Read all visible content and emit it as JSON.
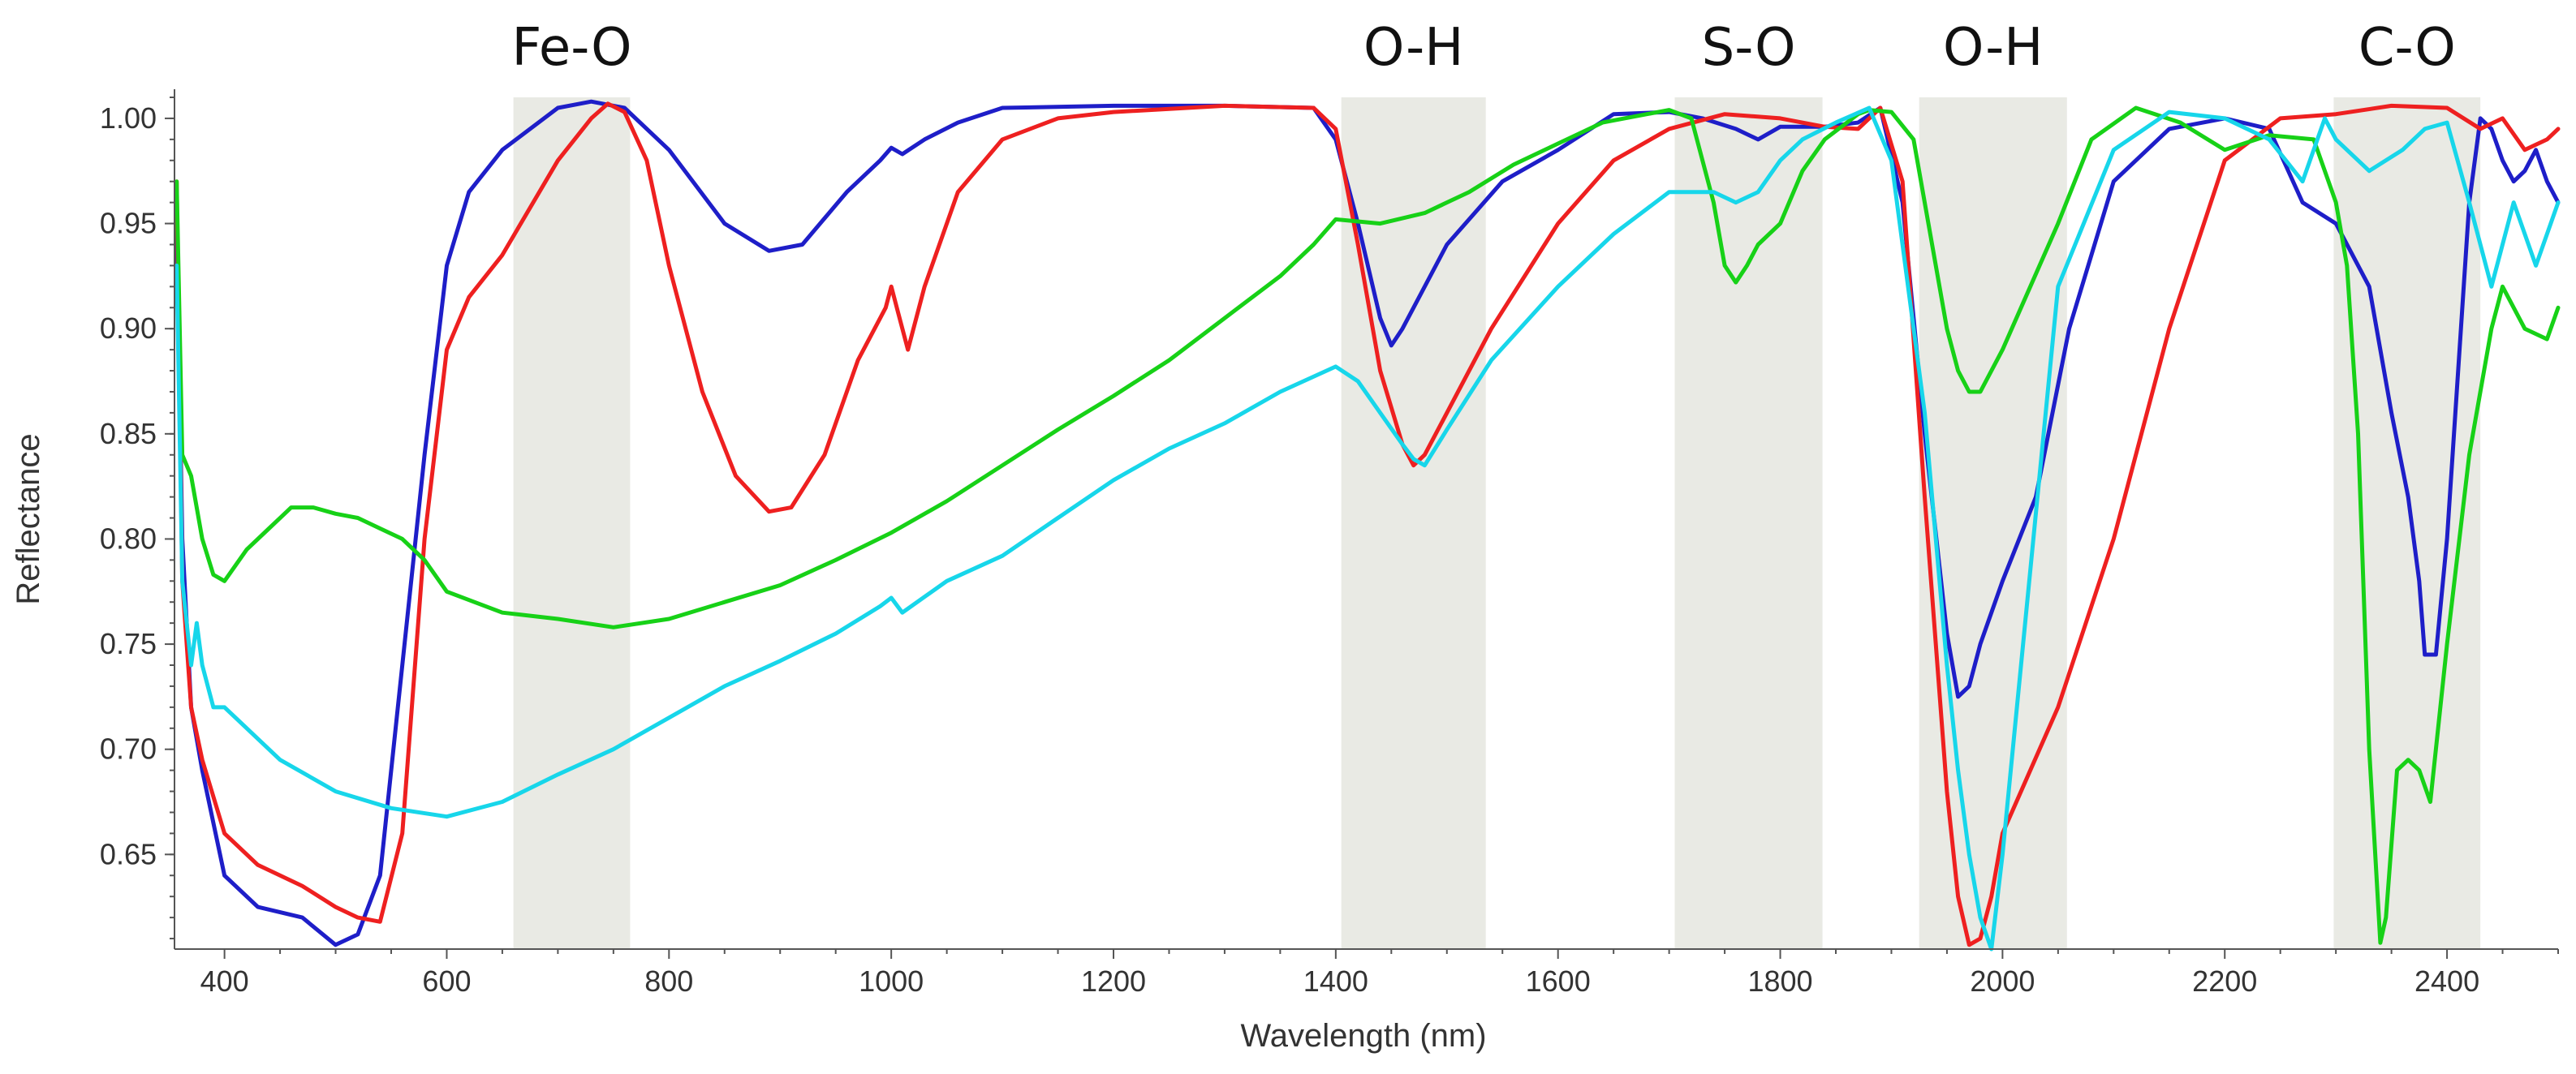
{
  "chart_data": {
    "type": "line",
    "title": "",
    "xlabel": "Wavelength (nm)",
    "ylabel": "Reflectance",
    "xlim": [
      355,
      2500
    ],
    "ylim": [
      0.605,
      1.01
    ],
    "grid": false,
    "x_ticks": [
      400,
      600,
      800,
      1000,
      1200,
      1400,
      1600,
      1800,
      2000,
      2200,
      2400
    ],
    "y_ticks": [
      0.65,
      0.7,
      0.75,
      0.8,
      0.85,
      0.9,
      0.95,
      1.0
    ],
    "y_tick_labels": [
      "0.65",
      "0.70",
      "0.75",
      "0.80",
      "0.85",
      "0.90",
      "0.95",
      "1.00"
    ],
    "bands": [
      {
        "label": "Fe-O",
        "from": 660,
        "to": 765
      },
      {
        "label": "O-H",
        "from": 1405,
        "to": 1535
      },
      {
        "label": "S-O",
        "from": 1705,
        "to": 1838
      },
      {
        "label": "O-H",
        "from": 1925,
        "to": 2058
      },
      {
        "label": "C-O",
        "from": 2298,
        "to": 2430
      }
    ],
    "series": [
      {
        "name": "blue",
        "color": "#1e1ec8",
        "x": [
          357,
          362,
          370,
          380,
          400,
          430,
          470,
          500,
          520,
          540,
          560,
          580,
          600,
          620,
          650,
          700,
          730,
          760,
          800,
          850,
          890,
          920,
          960,
          990,
          1000,
          1010,
          1030,
          1060,
          1100,
          1200,
          1300,
          1380,
          1400,
          1420,
          1440,
          1450,
          1460,
          1500,
          1550,
          1600,
          1650,
          1700,
          1730,
          1760,
          1780,
          1800,
          1840,
          1870,
          1890,
          1910,
          1930,
          1950,
          1960,
          1970,
          1980,
          2000,
          2030,
          2060,
          2100,
          2150,
          2200,
          2240,
          2270,
          2300,
          2330,
          2350,
          2365,
          2375,
          2380,
          2390,
          2400,
          2420,
          2430,
          2440,
          2450,
          2460,
          2470,
          2480,
          2490,
          2500
        ],
        "y": [
          0.95,
          0.8,
          0.72,
          0.69,
          0.64,
          0.625,
          0.62,
          0.607,
          0.612,
          0.64,
          0.74,
          0.84,
          0.93,
          0.965,
          0.985,
          1.005,
          1.008,
          1.005,
          0.985,
          0.95,
          0.937,
          0.94,
          0.965,
          0.98,
          0.986,
          0.983,
          0.99,
          0.998,
          1.005,
          1.006,
          1.006,
          1.005,
          0.99,
          0.95,
          0.905,
          0.892,
          0.9,
          0.94,
          0.97,
          0.985,
          1.002,
          1.003,
          1.0,
          0.995,
          0.99,
          0.996,
          0.996,
          0.998,
          1.005,
          0.96,
          0.85,
          0.755,
          0.725,
          0.73,
          0.75,
          0.78,
          0.82,
          0.9,
          0.97,
          0.995,
          1.0,
          0.995,
          0.96,
          0.95,
          0.92,
          0.86,
          0.82,
          0.78,
          0.745,
          0.745,
          0.8,
          0.96,
          1.0,
          0.995,
          0.98,
          0.97,
          0.975,
          0.985,
          0.97,
          0.96
        ]
      },
      {
        "name": "red",
        "color": "#ee2020",
        "x": [
          357,
          362,
          370,
          380,
          400,
          430,
          470,
          500,
          520,
          540,
          560,
          580,
          600,
          620,
          650,
          700,
          730,
          745,
          760,
          780,
          800,
          830,
          860,
          890,
          910,
          940,
          970,
          995,
          1000,
          1005,
          1015,
          1030,
          1060,
          1100,
          1150,
          1200,
          1300,
          1380,
          1400,
          1420,
          1440,
          1460,
          1470,
          1480,
          1500,
          1540,
          1600,
          1650,
          1700,
          1750,
          1800,
          1840,
          1870,
          1890,
          1910,
          1930,
          1950,
          1960,
          1970,
          1980,
          1990,
          2000,
          2050,
          2100,
          2150,
          2200,
          2250,
          2300,
          2350,
          2400,
          2430,
          2450,
          2470,
          2490,
          2500
        ],
        "y": [
          0.97,
          0.78,
          0.72,
          0.695,
          0.66,
          0.645,
          0.635,
          0.625,
          0.62,
          0.618,
          0.66,
          0.8,
          0.89,
          0.915,
          0.935,
          0.98,
          1.0,
          1.007,
          1.003,
          0.98,
          0.93,
          0.87,
          0.83,
          0.813,
          0.815,
          0.84,
          0.885,
          0.91,
          0.92,
          0.91,
          0.89,
          0.92,
          0.965,
          0.99,
          1.0,
          1.003,
          1.006,
          1.005,
          0.995,
          0.94,
          0.88,
          0.845,
          0.835,
          0.84,
          0.86,
          0.9,
          0.95,
          0.98,
          0.995,
          1.002,
          1.0,
          0.996,
          0.995,
          1.005,
          0.97,
          0.82,
          0.68,
          0.63,
          0.607,
          0.61,
          0.63,
          0.66,
          0.72,
          0.8,
          0.9,
          0.98,
          1.0,
          1.002,
          1.006,
          1.005,
          0.995,
          1.0,
          0.985,
          0.99,
          0.995
        ]
      },
      {
        "name": "green",
        "color": "#17d117",
        "x": [
          357,
          362,
          370,
          380,
          390,
          400,
          420,
          440,
          460,
          480,
          500,
          520,
          540,
          560,
          580,
          600,
          650,
          700,
          750,
          800,
          850,
          900,
          950,
          1000,
          1050,
          1100,
          1150,
          1200,
          1250,
          1300,
          1350,
          1380,
          1400,
          1440,
          1480,
          1520,
          1560,
          1600,
          1640,
          1680,
          1700,
          1720,
          1740,
          1750,
          1760,
          1770,
          1780,
          1800,
          1820,
          1840,
          1870,
          1880,
          1900,
          1920,
          1940,
          1950,
          1960,
          1970,
          1980,
          2000,
          2050,
          2080,
          2120,
          2160,
          2200,
          2240,
          2280,
          2300,
          2310,
          2320,
          2330,
          2340,
          2345,
          2355,
          2365,
          2375,
          2385,
          2400,
          2420,
          2440,
          2450,
          2470,
          2490,
          2500
        ],
        "y": [
          0.97,
          0.84,
          0.83,
          0.8,
          0.783,
          0.78,
          0.795,
          0.805,
          0.815,
          0.815,
          0.812,
          0.81,
          0.805,
          0.8,
          0.79,
          0.775,
          0.765,
          0.762,
          0.758,
          0.762,
          0.77,
          0.778,
          0.79,
          0.803,
          0.818,
          0.835,
          0.852,
          0.868,
          0.885,
          0.905,
          0.925,
          0.94,
          0.952,
          0.95,
          0.955,
          0.965,
          0.978,
          0.988,
          0.998,
          1.002,
          1.004,
          1.0,
          0.96,
          0.93,
          0.922,
          0.93,
          0.94,
          0.95,
          0.975,
          0.99,
          1.002,
          1.004,
          1.003,
          0.99,
          0.93,
          0.9,
          0.88,
          0.87,
          0.87,
          0.89,
          0.95,
          0.99,
          1.005,
          0.998,
          0.985,
          0.992,
          0.99,
          0.96,
          0.93,
          0.85,
          0.7,
          0.608,
          0.62,
          0.69,
          0.695,
          0.69,
          0.675,
          0.75,
          0.84,
          0.9,
          0.92,
          0.9,
          0.895,
          0.91
        ]
      },
      {
        "name": "cyan",
        "color": "#17d6ea",
        "x": [
          357,
          362,
          370,
          375,
          380,
          390,
          400,
          420,
          450,
          500,
          550,
          600,
          650,
          700,
          750,
          800,
          850,
          900,
          950,
          990,
          1000,
          1010,
          1050,
          1100,
          1150,
          1200,
          1250,
          1300,
          1350,
          1400,
          1420,
          1440,
          1460,
          1470,
          1480,
          1500,
          1540,
          1600,
          1650,
          1700,
          1740,
          1760,
          1780,
          1800,
          1820,
          1850,
          1880,
          1900,
          1930,
          1950,
          1960,
          1970,
          1980,
          1990,
          2000,
          2050,
          2100,
          2150,
          2200,
          2240,
          2270,
          2290,
          2300,
          2330,
          2360,
          2380,
          2400,
          2420,
          2440,
          2460,
          2480,
          2500
        ],
        "y": [
          0.93,
          0.78,
          0.74,
          0.76,
          0.74,
          0.72,
          0.72,
          0.71,
          0.695,
          0.68,
          0.672,
          0.668,
          0.675,
          0.688,
          0.7,
          0.715,
          0.73,
          0.742,
          0.755,
          0.768,
          0.772,
          0.765,
          0.78,
          0.792,
          0.81,
          0.828,
          0.843,
          0.855,
          0.87,
          0.882,
          0.875,
          0.86,
          0.845,
          0.838,
          0.835,
          0.852,
          0.885,
          0.92,
          0.945,
          0.965,
          0.965,
          0.96,
          0.965,
          0.98,
          0.99,
          0.998,
          1.005,
          0.98,
          0.86,
          0.74,
          0.69,
          0.65,
          0.62,
          0.605,
          0.65,
          0.92,
          0.985,
          1.003,
          1.0,
          0.99,
          0.97,
          1.0,
          0.99,
          0.975,
          0.985,
          0.995,
          0.998,
          0.96,
          0.92,
          0.96,
          0.93,
          0.96
        ]
      }
    ]
  }
}
